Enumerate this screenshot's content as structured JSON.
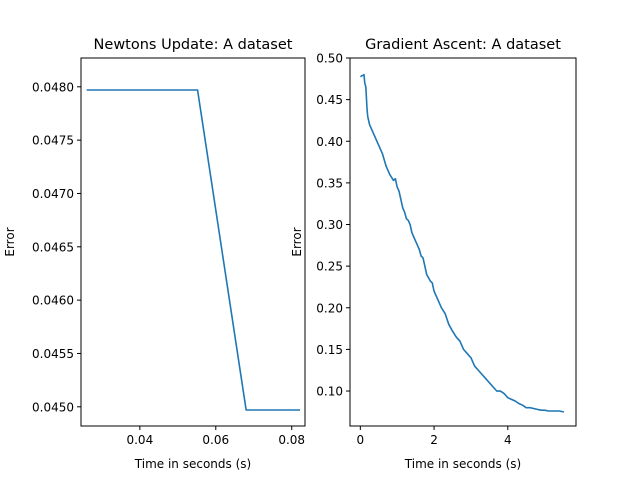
{
  "chart_data": [
    {
      "type": "line",
      "title": "Newtons Update: A dataset",
      "xlabel": "Time in seconds (s)",
      "ylabel": "Error",
      "xlim": [
        0.0245,
        0.0835
      ],
      "ylim": [
        0.04482,
        0.04827
      ],
      "xticks": [
        0.04,
        0.06,
        0.08
      ],
      "xtick_labels": [
        "0.04",
        "0.06",
        "0.08"
      ],
      "yticks": [
        0.045,
        0.0455,
        0.046,
        0.0465,
        0.047,
        0.0475,
        0.048
      ],
      "ytick_labels": [
        "0.0450",
        "0.0455",
        "0.0460",
        "0.0465",
        "0.0470",
        "0.0475",
        "0.0480"
      ],
      "series": [
        {
          "color": "#1f77b4",
          "x": [
            0.0262,
            0.0552,
            0.068,
            0.082
          ],
          "y": [
            0.04797,
            0.04797,
            0.04497,
            0.04497
          ]
        }
      ]
    },
    {
      "type": "line",
      "title": "Gradient Ascent: A dataset",
      "xlabel": "Time in seconds (s)",
      "ylabel": "Error",
      "xlim": [
        -0.28,
        5.85
      ],
      "ylim": [
        0.058,
        0.5
      ],
      "xticks": [
        0,
        2,
        4
      ],
      "xtick_labels": [
        "0",
        "2",
        "4"
      ],
      "yticks": [
        0.1,
        0.15,
        0.2,
        0.25,
        0.3,
        0.35,
        0.4,
        0.45,
        0.5
      ],
      "ytick_labels": [
        "0.10",
        "0.15",
        "0.20",
        "0.25",
        "0.30",
        "0.35",
        "0.40",
        "0.45",
        "0.50"
      ],
      "series": [
        {
          "color": "#1f77b4",
          "x": [
            0.02,
            0.1,
            0.12,
            0.15,
            0.18,
            0.2,
            0.25,
            0.3,
            0.4,
            0.5,
            0.55,
            0.6,
            0.7,
            0.8,
            0.9,
            0.95,
            1.0,
            1.05,
            1.1,
            1.15,
            1.2,
            1.25,
            1.3,
            1.35,
            1.4,
            1.45,
            1.5,
            1.55,
            1.6,
            1.65,
            1.7,
            1.8,
            1.9,
            1.95,
            2.0,
            2.05,
            2.1,
            2.2,
            2.3,
            2.4,
            2.5,
            2.6,
            2.7,
            2.8,
            2.9,
            3.0,
            3.1,
            3.2,
            3.3,
            3.4,
            3.5,
            3.6,
            3.7,
            3.8,
            3.9,
            4.0,
            4.1,
            4.2,
            4.3,
            4.4,
            4.5,
            4.6,
            4.7,
            4.8,
            4.9,
            5.0,
            5.1,
            5.2,
            5.3,
            5.4,
            5.5
          ],
          "y": [
            0.478,
            0.48,
            0.47,
            0.465,
            0.44,
            0.43,
            0.42,
            0.415,
            0.405,
            0.395,
            0.39,
            0.385,
            0.37,
            0.36,
            0.353,
            0.355,
            0.345,
            0.34,
            0.33,
            0.32,
            0.315,
            0.307,
            0.305,
            0.3,
            0.29,
            0.285,
            0.28,
            0.275,
            0.27,
            0.262,
            0.26,
            0.24,
            0.232,
            0.23,
            0.22,
            0.215,
            0.21,
            0.2,
            0.193,
            0.18,
            0.172,
            0.165,
            0.16,
            0.15,
            0.145,
            0.14,
            0.13,
            0.125,
            0.12,
            0.115,
            0.11,
            0.105,
            0.1,
            0.1,
            0.097,
            0.092,
            0.09,
            0.088,
            0.085,
            0.083,
            0.08,
            0.08,
            0.079,
            0.078,
            0.077,
            0.077,
            0.076,
            0.076,
            0.076,
            0.076,
            0.075
          ]
        }
      ]
    }
  ]
}
